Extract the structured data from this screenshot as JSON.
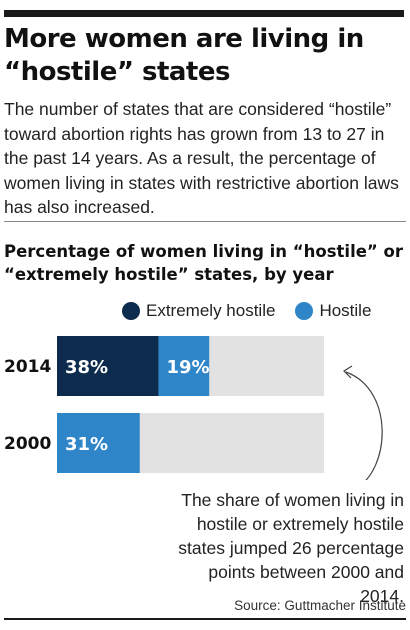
{
  "headline": "More women are living in “hostile” states",
  "dek": "The number of states that are considered “hostile” toward abortion rights has grown from 13 to 27 in the past 14 years. As a result, the percentage of women living in states with restrictive abortion laws has also increased.",
  "annotation": "The share of women living in hostile or extremely hostile states jumped 26 percentage points between 2000 and 2014.",
  "source": "Source: Guttmacher Institute",
  "colors": {
    "extremely_hostile": "#0d2b4c",
    "hostile": "#2e86c9",
    "remainder": "#e2e2e2"
  },
  "chart_data": {
    "type": "bar",
    "orientation": "horizontal",
    "stacked": true,
    "title": "Percentage of women living in “hostile” or “extremely hostile” states, by year",
    "categories": [
      "2014",
      "2000"
    ],
    "series": [
      {
        "name": "Extremely hostile",
        "values": [
          38,
          0
        ],
        "labels": [
          "38%",
          ""
        ]
      },
      {
        "name": "Hostile",
        "values": [
          19,
          31
        ],
        "labels": [
          "19%",
          "31%"
        ]
      }
    ],
    "xlim": [
      0,
      100
    ],
    "legend": "top",
    "grid": false
  }
}
